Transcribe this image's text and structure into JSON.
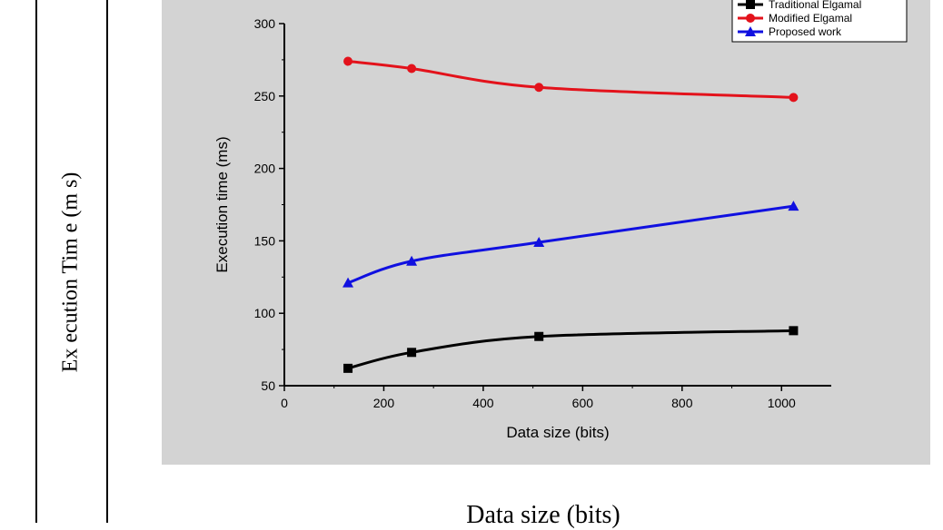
{
  "outer_figure": {
    "ylabel": "Ex ecution Tim e (m s)",
    "xlabel": "Data size (bits)"
  },
  "chart_data": {
    "type": "line",
    "title": "",
    "xlabel": "Data size (bits)",
    "ylabel": "Execution time (ms)",
    "xlim": [
      0,
      1100
    ],
    "ylim": [
      50,
      300
    ],
    "xticks": [
      0,
      200,
      400,
      600,
      800,
      1000
    ],
    "yticks": [
      50,
      100,
      150,
      200,
      250,
      300
    ],
    "grid": false,
    "legend_position": "top-right",
    "x": [
      128,
      256,
      512,
      1024
    ],
    "series": [
      {
        "name": "Traditional Elgamal",
        "values": [
          62,
          73,
          84,
          88
        ],
        "color": "#000000",
        "marker": "square"
      },
      {
        "name": "Modified Elgamal",
        "values": [
          274,
          269,
          256,
          249
        ],
        "color": "#e3121b",
        "marker": "circle"
      },
      {
        "name": "Proposed work",
        "values": [
          121,
          136,
          149,
          174
        ],
        "color": "#1010e0",
        "marker": "triangle"
      }
    ]
  }
}
